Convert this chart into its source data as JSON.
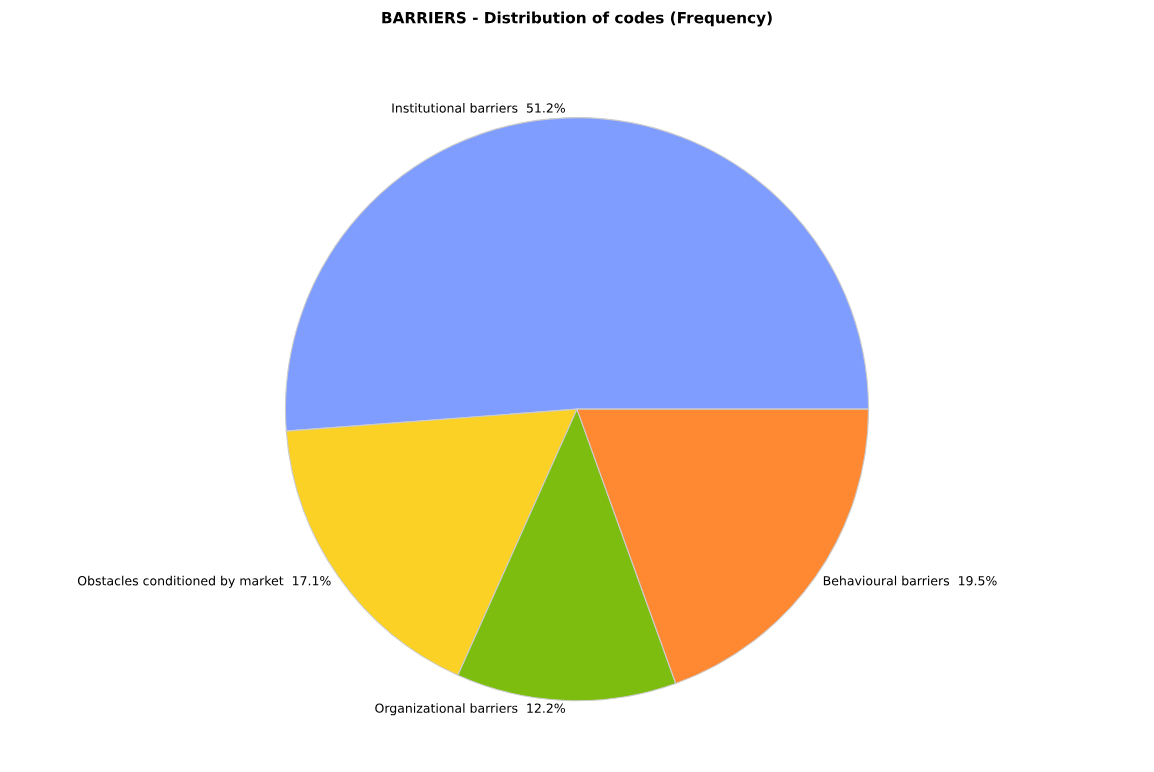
{
  "chart_data": {
    "type": "pie",
    "title": "BARRIERS - Distribution of codes (Frequency)",
    "categories": [
      "Institutional barriers",
      "Obstacles conditioned by market",
      "Organizational barriers",
      "Behavioural barriers"
    ],
    "values": [
      51.2,
      17.1,
      12.2,
      19.5
    ],
    "value_labels": [
      "51.2%",
      "17.1%",
      "12.2%",
      "19.5%"
    ],
    "colors": [
      "#7f9cff",
      "#fad124",
      "#7dbd10",
      "#ff8833"
    ],
    "legend": false
  }
}
